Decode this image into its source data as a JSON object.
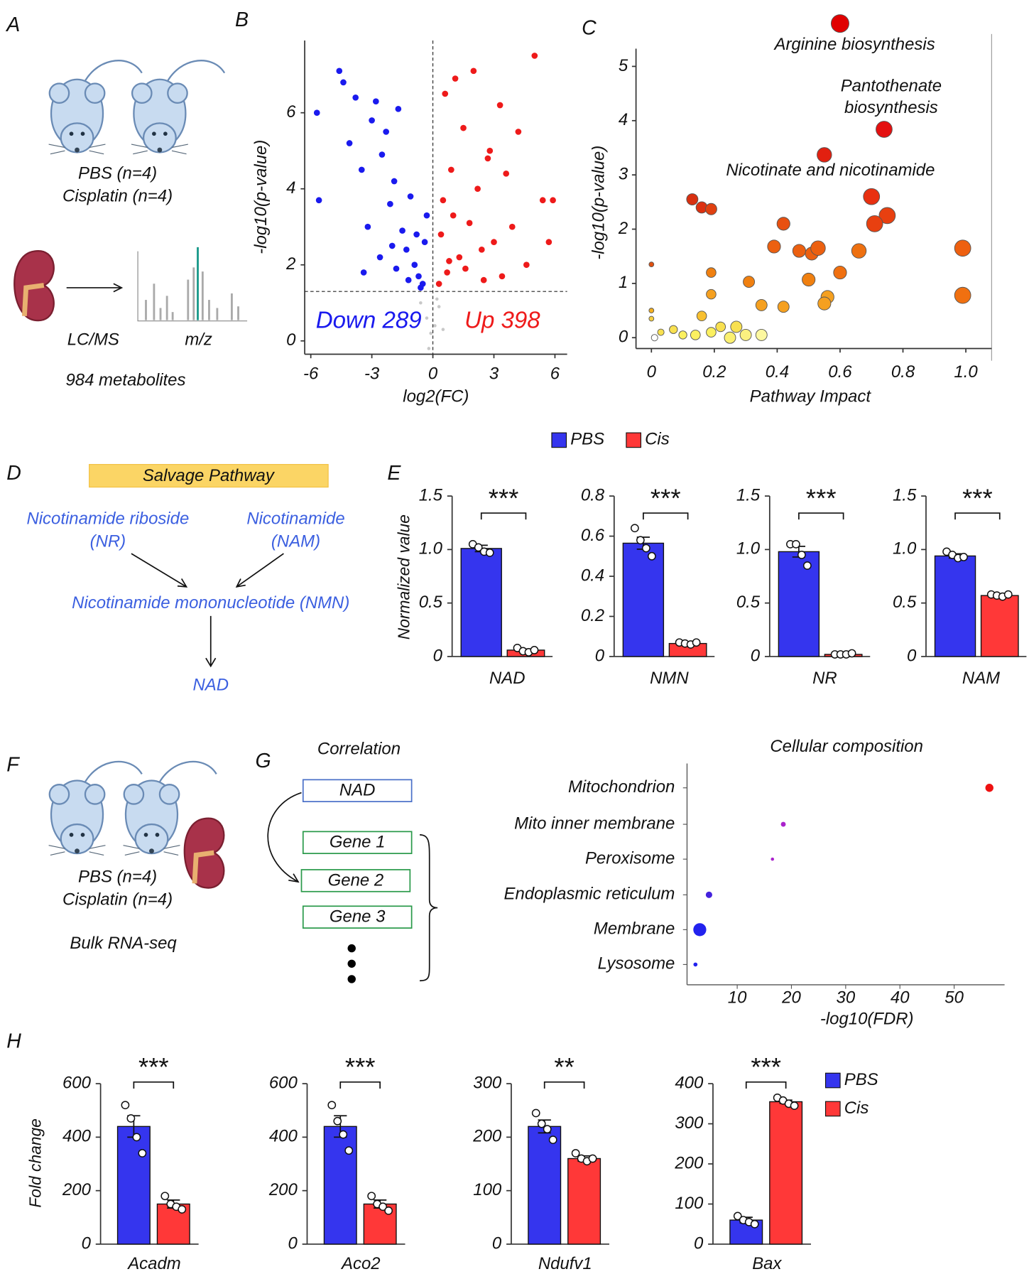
{
  "panel_labels": [
    "A",
    "B",
    "C",
    "D",
    "E",
    "F",
    "G",
    "H"
  ],
  "panel_a": {
    "groups": [
      "PBS (n=4)",
      "Cisplatin (n=4)"
    ],
    "method": "LC/MS",
    "axis": "m/z",
    "count": "984 metabolites"
  },
  "panel_d": {
    "title": "Salvage Pathway",
    "nodes": [
      {
        "name": "Nicotinamide riboside",
        "abbr": "(NR)"
      },
      {
        "name": "Nicotinamide",
        "abbr": "(NAM)"
      },
      {
        "name": "Nicotinamide mononucleotide (NMN)"
      },
      {
        "name": "NAD"
      }
    ]
  },
  "panel_f": {
    "groups": [
      "PBS (n=4)",
      "Cisplatin (n=4)"
    ],
    "method": "Bulk RNA-seq"
  },
  "panel_g": {
    "title": "Correlation",
    "source": "NAD",
    "genes": [
      "Gene 1",
      "Gene 2",
      "Gene 3"
    ]
  },
  "legends": {
    "e": [
      {
        "name": "PBS",
        "color": "#3535ee"
      },
      {
        "name": "Cis",
        "color": "#ff3838"
      }
    ],
    "h": [
      {
        "name": "PBS",
        "color": "#3535ee"
      },
      {
        "name": "Cis",
        "color": "#ff3838"
      }
    ]
  },
  "chart_data": [
    {
      "type": "scatter",
      "xlabel": "log2(FC)",
      "ylabel": "-log10(p-value)",
      "xlim": [
        -6.3,
        6.6
      ],
      "ylim": [
        -0.35,
        7.9
      ],
      "xticks": [
        -6,
        -3,
        0,
        3,
        6
      ],
      "yticks": [
        0,
        2,
        4,
        6
      ],
      "threshold_x": 0,
      "threshold_y": 1.3,
      "series": [
        {
          "name": "Down 289",
          "color": "#1a1aee",
          "x": [
            -5.7,
            -5.6,
            -4.6,
            -4.4,
            -4.1,
            -3.8,
            -3.5,
            -3.2,
            -3.0,
            -2.8,
            -2.5,
            -2.3,
            -2.1,
            -1.9,
            -1.7,
            -1.5,
            -1.3,
            -1.1,
            -0.9,
            -0.7,
            -0.5,
            -0.4,
            -0.3,
            -2.6,
            -1.8,
            -1.2,
            -0.8,
            -0.6,
            -3.4,
            -2.0
          ],
          "y": [
            6.0,
            3.7,
            7.1,
            6.8,
            5.2,
            6.4,
            4.5,
            3.0,
            5.8,
            6.3,
            4.9,
            5.5,
            3.6,
            4.2,
            6.1,
            2.9,
            2.4,
            3.8,
            2.0,
            1.7,
            1.5,
            2.6,
            3.3,
            2.2,
            1.9,
            1.6,
            2.8,
            1.4,
            1.8,
            2.5
          ]
        },
        {
          "name": "Up 398",
          "color": "#ee1a1a",
          "x": [
            0.3,
            0.4,
            0.5,
            0.7,
            0.9,
            1.1,
            1.3,
            1.5,
            1.8,
            2.0,
            2.2,
            2.5,
            2.8,
            3.0,
            3.3,
            3.6,
            3.9,
            4.2,
            4.6,
            5.0,
            5.4,
            5.7,
            5.9,
            1.6,
            2.4,
            1.0,
            0.6,
            3.4,
            0.8,
            2.7
          ],
          "y": [
            1.5,
            2.8,
            3.7,
            1.8,
            4.5,
            6.9,
            2.2,
            5.6,
            3.1,
            7.1,
            4.0,
            1.6,
            5.0,
            2.6,
            6.2,
            4.4,
            3.0,
            5.5,
            2.0,
            7.5,
            3.7,
            2.6,
            3.7,
            1.9,
            2.4,
            3.3,
            6.5,
            1.7,
            2.1,
            4.8
          ]
        },
        {
          "color": "#c8c8c8",
          "x": [
            -0.6,
            -0.3,
            -0.1,
            0.1,
            0.3,
            0.5,
            -0.2,
            0.2
          ],
          "y": [
            1.0,
            0.6,
            0.2,
            0.4,
            0.9,
            0.3,
            -0.2,
            1.1
          ]
        }
      ]
    },
    {
      "type": "bubble",
      "xlabel": "Pathway Impact",
      "ylabel": "-log10(p-value)",
      "xlim": [
        -0.049,
        1.082
      ],
      "ylim": [
        -0.2,
        5.85
      ],
      "xticks": [
        0,
        0.2,
        0.4,
        0.6,
        0.8,
        {
          "value": 1,
          "label": "1.0"
        }
      ],
      "yticks": [
        0,
        1,
        2,
        3,
        4,
        5
      ],
      "annotations": [
        "Arginine biosynthesis",
        "Pantothenate",
        "biosynthesis",
        "Nicotinate and nicotinamide"
      ],
      "x": [
        0.6,
        0.74,
        0.55,
        0.7,
        0.75,
        0.71,
        0.13,
        0.16,
        0.19,
        0.42,
        0.39,
        0.47,
        0.51,
        0.53,
        0.66,
        0.99,
        0.99,
        0.6,
        0.5,
        0.31,
        0.56,
        0.55,
        0.42,
        0.35,
        0.19,
        0.19,
        0.16,
        0.0,
        0.0,
        0.0,
        0.03,
        0.07,
        0.1,
        0.14,
        0.19,
        0.22,
        0.25,
        0.27,
        0.3,
        0.35,
        0.01
      ],
      "y": [
        5.79,
        3.84,
        3.37,
        2.6,
        2.25,
        2.1,
        2.55,
        2.4,
        2.37,
        2.1,
        1.68,
        1.6,
        1.55,
        1.65,
        1.6,
        1.65,
        0.78,
        1.2,
        1.07,
        1.03,
        0.75,
        0.63,
        0.57,
        0.6,
        1.2,
        0.8,
        0.4,
        1.35,
        0.5,
        0.35,
        0.1,
        0.15,
        0.05,
        0.05,
        0.1,
        0.2,
        0.0,
        0.2,
        0.05,
        0.05,
        0.0
      ],
      "sizes": [
        11,
        10,
        9,
        10,
        10,
        10,
        7,
        7,
        7,
        8,
        8,
        8,
        8,
        9,
        9,
        10,
        10,
        8,
        8,
        7,
        8,
        8,
        7,
        7,
        6,
        6,
        6,
        3,
        3,
        3,
        4,
        5,
        5,
        6,
        6,
        6,
        7,
        7,
        7,
        7,
        4
      ],
      "colors": [
        "#e00000",
        "#e41010",
        "#e22010",
        "#e83010",
        "#e84010",
        "#e84010",
        "#d83010",
        "#dc3010",
        "#e04010",
        "#e85010",
        "#ec6010",
        "#ec6010",
        "#ec6010",
        "#ec6010",
        "#ee7010",
        "#ee6010",
        "#f07010",
        "#f07010",
        "#f08010",
        "#f08010",
        "#f5a020",
        "#f5a020",
        "#f5a020",
        "#f5a020",
        "#f08010",
        "#f5a020",
        "#f8c030",
        "#e05010",
        "#f5b020",
        "#f8d040",
        "#f8e050",
        "#f8e050",
        "#fbf060",
        "#fbf060",
        "#fbf060",
        "#f8e050",
        "#fbf070",
        "#f8e050",
        "#fbf080",
        "#fdf8a0",
        "#ffffff"
      ]
    },
    {
      "type": "bar",
      "xlabel": "NAD",
      "ylabel": "Normalized value",
      "significance": "***",
      "ylim": [
        0,
        1.5
      ],
      "yticks": [
        0,
        0.5,
        {
          "value": 1,
          "label": "1.0"
        },
        1.5
      ],
      "values": [
        1.01,
        0.06
      ],
      "errors": [
        0.03,
        0.01
      ],
      "points": [
        [
          1.05,
          1.02,
          0.98,
          0.97
        ],
        [
          0.08,
          0.05,
          0.04,
          0.06
        ]
      ]
    },
    {
      "type": "bar",
      "xlabel": "NMN",
      "significance": "***",
      "ylim": [
        0,
        0.8
      ],
      "yticks": [
        0,
        0.2,
        0.4,
        0.6,
        0.8
      ],
      "values": [
        0.565,
        0.065
      ],
      "errors": [
        0.03,
        0.005
      ],
      "points": [
        [
          0.64,
          0.58,
          0.54,
          0.5
        ],
        [
          0.07,
          0.065,
          0.06,
          0.07
        ]
      ]
    },
    {
      "type": "bar",
      "xlabel": "NR",
      "significance": "***",
      "ylim": [
        0,
        1.5
      ],
      "yticks": [
        0,
        0.5,
        {
          "value": 1,
          "label": "1.0"
        },
        1.5
      ],
      "values": [
        0.98,
        0.02
      ],
      "errors": [
        0.05,
        0.005
      ],
      "points": [
        [
          1.05,
          1.05,
          0.95,
          0.85
        ],
        [
          0.02,
          0.02,
          0.02,
          0.03
        ]
      ]
    },
    {
      "type": "bar",
      "xlabel": "NAM",
      "significance": "***",
      "ylim": [
        0,
        1.5
      ],
      "yticks": [
        0,
        0.5,
        {
          "value": 1,
          "label": "1.0"
        },
        1.5
      ],
      "values": [
        0.94,
        0.57
      ],
      "errors": [
        0.02,
        0.01
      ],
      "points": [
        [
          0.98,
          0.95,
          0.92,
          0.93
        ],
        [
          0.58,
          0.57,
          0.56,
          0.58
        ]
      ]
    },
    {
      "type": "dot",
      "title": "Cellular composition",
      "xlabel": "-log10(FDR)",
      "xlim": [
        0.75,
        59.3
      ],
      "xticks": [
        10,
        20,
        30,
        40,
        50
      ],
      "categories": [
        "Mitochondrion",
        "Mito inner membrane",
        "Peroxisome",
        "Endoplasmic reticulum",
        "Membrane",
        "Lysosome"
      ],
      "values": [
        56.5,
        18.5,
        16.5,
        4.8,
        3.1,
        2.3
      ],
      "sizes": [
        5,
        3,
        2,
        4,
        8,
        2.5
      ],
      "colors": [
        "#ee1111",
        "#aa22cc",
        "#aa22cc",
        "#4422dd",
        "#2222ee",
        "#2222ee"
      ]
    },
    {
      "type": "bar",
      "xlabel": "Acadm",
      "ylabel": "Fold change",
      "significance": "***",
      "ylim": [
        0,
        600
      ],
      "yticks": [
        0,
        200,
        400,
        600
      ],
      "values": [
        440,
        150
      ],
      "errors": [
        40,
        15
      ],
      "points": [
        [
          520,
          470,
          400,
          340
        ],
        [
          180,
          150,
          140,
          130
        ]
      ]
    },
    {
      "type": "bar",
      "xlabel": "Aco2",
      "significance": "***",
      "ylim": [
        0,
        600
      ],
      "yticks": [
        0,
        200,
        400,
        600
      ],
      "values": [
        440,
        150
      ],
      "errors": [
        40,
        15
      ],
      "points": [
        [
          520,
          460,
          410,
          350
        ],
        [
          180,
          150,
          140,
          125
        ]
      ]
    },
    {
      "type": "bar",
      "xlabel": "Ndufv1",
      "significance": "**",
      "ylim": [
        0,
        300
      ],
      "yticks": [
        0,
        100,
        200,
        300
      ],
      "values": [
        220,
        160
      ],
      "errors": [
        12,
        5
      ],
      "points": [
        [
          245,
          225,
          215,
          195
        ],
        [
          170,
          160,
          155,
          160
        ]
      ]
    },
    {
      "type": "bar",
      "xlabel": "Bax",
      "significance": "***",
      "ylim": [
        0,
        400
      ],
      "yticks": [
        0,
        100,
        200,
        300,
        400
      ],
      "values": [
        60,
        355
      ],
      "errors": [
        7,
        4
      ],
      "points": [
        [
          70,
          60,
          55,
          50
        ],
        [
          365,
          358,
          350,
          345
        ]
      ]
    }
  ]
}
